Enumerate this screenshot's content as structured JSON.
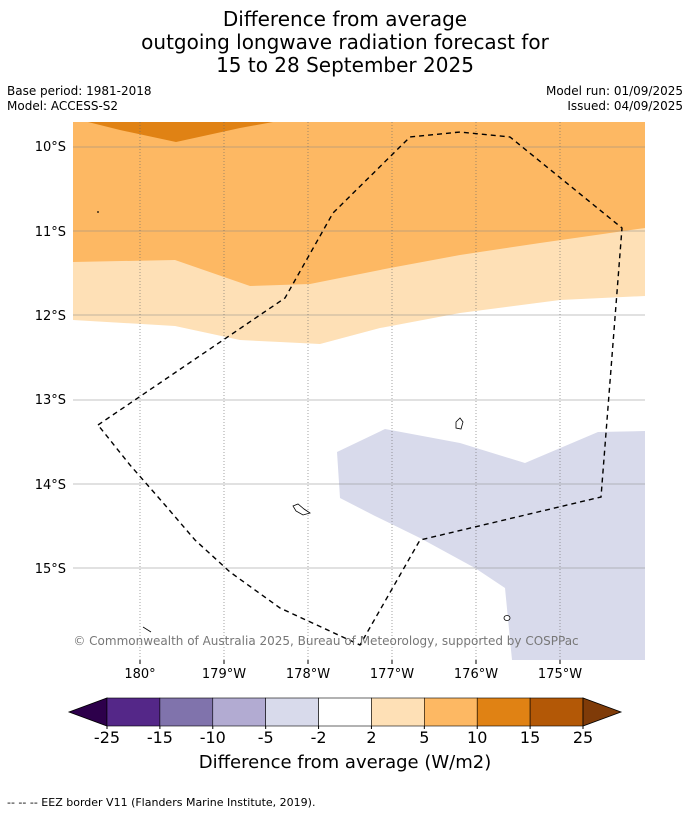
{
  "title": {
    "line1": "Difference from average",
    "line2": "outgoing longwave radiation forecast for",
    "line3": "15 to 28 September 2025"
  },
  "meta": {
    "base_period": "Base period: 1981-2018",
    "model": "Model: ACCESS-S2",
    "model_run": "Model run: 01/09/2025",
    "issued": "Issued: 04/09/2025"
  },
  "map": {
    "lat_labels": [
      "10°S",
      "11°S",
      "12°S",
      "13°S",
      "14°S",
      "15°S"
    ],
    "lon_labels": [
      "180°",
      "179°W",
      "178°W",
      "177°W",
      "176°W",
      "175°W"
    ],
    "copyright": "© Commonwealth of Australia 2025, Bureau of Meteorology, supported by COSPPac",
    "colors": {
      "orange_dark": "#e08214",
      "orange_mid": "#fdb863",
      "orange_light": "#fee0b6",
      "lavender": "#d8daeb"
    }
  },
  "colorbar": {
    "ticks": [
      "-25",
      "-15",
      "-10",
      "-5",
      "-2",
      "2",
      "5",
      "10",
      "15",
      "25"
    ],
    "colors": [
      "#2d004b",
      "#542788",
      "#8073ac",
      "#b2abd2",
      "#d8daeb",
      "#ffffff",
      "#fee0b6",
      "#fdb863",
      "#e08214",
      "#b35806",
      "#7f3b08"
    ],
    "label": "Difference from average (W/m2)"
  },
  "footer": {
    "legend": "--  --  -- EEZ border V11 (Flanders Marine Institute, 2019)."
  }
}
